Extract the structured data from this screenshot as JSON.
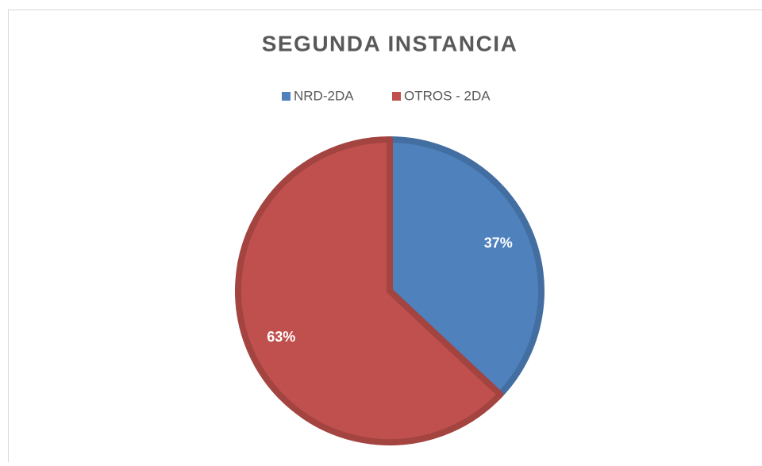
{
  "chart_data": {
    "type": "pie",
    "title": "SEGUNDA INSTANCIA",
    "categories": [
      "NRD-2DA",
      "OTROS - 2DA"
    ],
    "values": [
      37,
      63
    ],
    "value_labels": [
      "37%",
      "63%"
    ],
    "colors": [
      "#4f81bd",
      "#c0504d"
    ],
    "legend": "top"
  }
}
